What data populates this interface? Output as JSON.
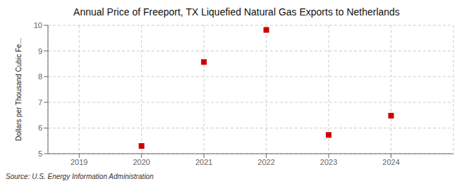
{
  "chart_data": {
    "type": "scatter",
    "title": "Annual Price of Freeport, TX Liquefied Natural Gas Exports to Netherlands",
    "y_label": "Dollars per Thousand Cubic Fe...",
    "annotations": [
      "Source: U.S. Energy Information Administration"
    ],
    "x": [
      2020,
      2021,
      2022,
      2023,
      2024
    ],
    "values": [
      5.3,
      8.57,
      9.82,
      5.73,
      6.48
    ],
    "xlim": [
      2018.5,
      2025.0
    ],
    "ylim": [
      5.0,
      10.0
    ],
    "xticks": [
      2019,
      2020,
      2021,
      2022,
      2023,
      2024
    ],
    "yticks": [
      5,
      6,
      7,
      8,
      9,
      10
    ],
    "color": "#cc0000",
    "marker": "square",
    "grid": true
  }
}
